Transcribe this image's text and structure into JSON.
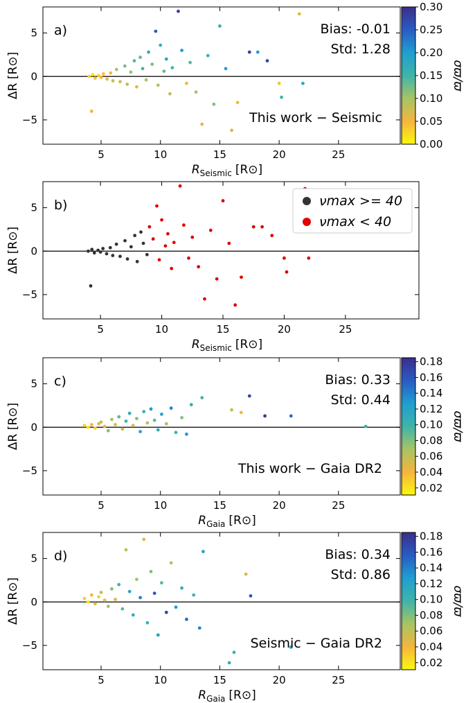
{
  "chart_data": [
    {
      "type": "scatter",
      "panel_label": "a)",
      "annotations": [
        "Bias: -0.01",
        "Std: 1.28",
        "This work − Seismic"
      ],
      "xlabel": {
        "symbol": "R",
        "subscript": "Seismic",
        "unit": "[R⊙]"
      },
      "ylabel": "ΔR [R⊙]",
      "xlim": [
        0.1,
        30.2
      ],
      "ylim": [
        -7.8,
        8
      ],
      "xticks": [
        5,
        10,
        15,
        20,
        25
      ],
      "yticks": [
        {
          "value": -5,
          "label": "−5"
        },
        0,
        5
      ],
      "hline": 0,
      "colorbar": {
        "label": "σϖ/ϖ",
        "clim": [
          0,
          0.3
        ],
        "cticks": [
          {
            "value": 0,
            "label": "0.00"
          },
          0.05,
          {
            "value": 0.1,
            "label": "0.10"
          },
          0.15,
          {
            "value": 0.2,
            "label": "0.20"
          },
          0.25,
          {
            "value": 0.3,
            "label": "0.30"
          }
        ]
      },
      "colormap": [
        "#fcf80e",
        "#f5b53e",
        "#a7c464",
        "#3fb4a9",
        "#1f9fd0",
        "#2a5bc4",
        "#3b2e88"
      ],
      "series": [
        {
          "x": [
            4.0,
            4.2,
            4.3,
            4.5,
            4.8,
            5.0,
            5.2,
            5.5,
            5.8,
            6.0,
            6.3,
            6.6,
            7.0,
            7.2,
            7.5,
            7.8,
            8.0,
            8.3,
            8.5,
            8.8,
            9.0,
            9.3,
            9.6,
            9.8,
            10.0,
            10.3,
            10.5,
            10.8,
            11.0,
            11.5,
            11.8,
            12.2,
            12.5,
            13.0,
            13.5,
            14.0,
            14.5,
            15.0,
            15.5,
            16.0,
            16.5,
            17.5,
            18.2,
            19.0,
            20.0,
            20.2,
            21.7,
            22.0
          ],
          "y": [
            0.0,
            -4.0,
            0.2,
            -0.2,
            0.1,
            -0.1,
            0.3,
            -0.3,
            0.4,
            -0.5,
            0.8,
            -0.6,
            1.2,
            -0.9,
            0.5,
            1.8,
            -1.2,
            2.2,
            0.9,
            -0.4,
            2.8,
            1.4,
            5.2,
            -1.0,
            3.6,
            0.6,
            2.0,
            -2.0,
            1.0,
            7.5,
            3.0,
            -0.8,
            1.6,
            -1.8,
            -5.5,
            2.4,
            -3.2,
            5.8,
            0.9,
            -6.2,
            -3.0,
            2.8,
            2.8,
            1.8,
            -0.8,
            -2.4,
            7.2,
            -0.8
          ],
          "c": [
            0.03,
            0.05,
            0.02,
            0.04,
            0.03,
            0.05,
            0.04,
            0.06,
            0.05,
            0.08,
            0.1,
            0.07,
            0.12,
            0.09,
            0.11,
            0.14,
            0.06,
            0.13,
            0.15,
            0.1,
            0.17,
            0.12,
            0.25,
            0.09,
            0.16,
            0.13,
            0.18,
            0.08,
            0.15,
            0.28,
            0.2,
            0.05,
            0.14,
            0.1,
            0.06,
            0.16,
            0.12,
            0.16,
            0.2,
            0.07,
            0.05,
            0.28,
            0.2,
            0.27,
            0.04,
            0.15,
            0.06,
            0.18
          ]
        }
      ]
    },
    {
      "type": "scatter",
      "panel_label": "b)",
      "xlabel": {
        "symbol": "R",
        "subscript": "Seismic",
        "unit": "[R⊙]"
      },
      "ylabel": "ΔR [R⊙]",
      "xlim": [
        0.3,
        31
      ],
      "ylim": [
        -7.8,
        8
      ],
      "xticks": [
        5,
        10,
        15,
        20,
        25
      ],
      "yticks": [
        {
          "value": -5,
          "label": "−5"
        },
        0,
        5
      ],
      "hline": 0,
      "legend": "upper right",
      "series": [
        {
          "name": "νmax >= 40",
          "color": "#333333",
          "x": [
            4.0,
            4.2,
            4.3,
            4.5,
            4.8,
            5.0,
            5.2,
            5.5,
            5.8,
            6.0,
            6.3,
            6.6,
            7.0,
            7.2,
            7.5,
            7.8,
            8.0,
            8.3,
            8.5,
            8.8
          ],
          "y": [
            0.0,
            -4.0,
            0.2,
            -0.2,
            0.1,
            -0.1,
            0.3,
            -0.3,
            0.4,
            -0.5,
            0.8,
            -0.6,
            1.2,
            -0.9,
            0.5,
            1.8,
            -1.2,
            2.2,
            0.9,
            -0.4
          ]
        },
        {
          "name": "νmax < 40",
          "color": "#e00000",
          "x": [
            9.0,
            9.3,
            9.6,
            9.8,
            10.0,
            10.3,
            10.5,
            10.8,
            11.0,
            11.5,
            11.8,
            12.2,
            12.5,
            13.0,
            13.5,
            14.0,
            14.5,
            15.0,
            15.5,
            16.0,
            16.5,
            17.5,
            18.2,
            19.0,
            20.0,
            20.2,
            21.7,
            22.0
          ],
          "y": [
            2.8,
            1.4,
            5.2,
            -1.0,
            3.6,
            0.6,
            2.0,
            -2.0,
            1.0,
            7.5,
            3.0,
            -0.8,
            1.6,
            -1.8,
            -5.5,
            2.4,
            -3.2,
            5.8,
            0.9,
            -6.2,
            -3.0,
            2.8,
            2.8,
            1.8,
            -0.8,
            -2.4,
            7.2,
            -0.8
          ]
        }
      ]
    },
    {
      "type": "scatter",
      "panel_label": "c)",
      "annotations": [
        "Bias: 0.33",
        "Std: 0.44",
        "This work − Gaia DR2"
      ],
      "xlabel": {
        "symbol": "R",
        "subscript": "Gaia",
        "unit": "[R⊙]"
      },
      "ylabel": "ΔR [R⊙]",
      "xlim": [
        0.1,
        30.2
      ],
      "ylim": [
        -7.8,
        8
      ],
      "xticks": [
        5,
        10,
        15,
        20,
        25
      ],
      "yticks": [
        {
          "value": -5,
          "label": "−5"
        },
        0,
        5
      ],
      "hline": 0,
      "colorbar": {
        "label": "σϖ/ϖ",
        "clim": [
          0.011,
          0.185
        ],
        "cticks": [
          0.02,
          0.04,
          0.06,
          0.08,
          {
            "value": 0.1,
            "label": "0.10"
          },
          0.12,
          0.14,
          0.16,
          0.18
        ]
      },
      "colormap": [
        "#fcf80e",
        "#f5b53e",
        "#a7c464",
        "#3fb4a9",
        "#1f9fd0",
        "#2a5bc4",
        "#3b2e88"
      ],
      "series": [
        {
          "x": [
            3.6,
            3.9,
            4.2,
            4.5,
            4.8,
            5.0,
            5.3,
            5.6,
            5.9,
            6.2,
            6.5,
            6.8,
            7.1,
            7.4,
            7.7,
            8.0,
            8.3,
            8.6,
            8.9,
            9.2,
            9.5,
            9.8,
            10.1,
            10.5,
            10.9,
            11.3,
            11.8,
            12.2,
            12.6,
            13.5,
            16.0,
            16.8,
            17.5,
            18.8,
            21.0,
            27.3
          ],
          "y": [
            0.2,
            0.0,
            0.3,
            -0.1,
            0.4,
            0.6,
            0.1,
            -0.4,
            0.9,
            0.3,
            1.2,
            -0.2,
            0.7,
            1.6,
            0.2,
            1.0,
            -0.5,
            1.8,
            0.5,
            2.1,
            0.8,
            -0.3,
            1.5,
            0.4,
            2.2,
            -0.6,
            1.1,
            -0.8,
            2.6,
            3.4,
            2.0,
            1.7,
            3.6,
            1.3,
            1.3,
            0.1
          ],
          "c": [
            0.03,
            0.02,
            0.04,
            0.03,
            0.05,
            0.06,
            0.04,
            0.08,
            0.07,
            0.05,
            0.09,
            0.06,
            0.1,
            0.11,
            0.05,
            0.08,
            0.12,
            0.1,
            0.06,
            0.13,
            0.09,
            0.11,
            0.12,
            0.07,
            0.14,
            0.1,
            0.08,
            0.13,
            0.11,
            0.1,
            0.06,
            0.04,
            0.17,
            0.18,
            0.15,
            0.1
          ]
        }
      ]
    },
    {
      "type": "scatter",
      "panel_label": "d)",
      "annotations": [
        "Bias: 0.34",
        "Std: 0.86",
        "Seismic − Gaia DR2"
      ],
      "xlabel": {
        "symbol": "R",
        "subscript": "Gaia",
        "unit": "[R⊙]"
      },
      "ylabel": "ΔR [R⊙]",
      "xlim": [
        0.1,
        30.2
      ],
      "ylim": [
        -7.8,
        8
      ],
      "xticks": [
        5,
        10,
        15,
        20,
        25
      ],
      "yticks": [
        {
          "value": -5,
          "label": "−5"
        },
        0,
        5
      ],
      "hline": 0,
      "colorbar": {
        "label": "σϖ/ϖ",
        "clim": [
          0.011,
          0.185
        ],
        "cticks": [
          0.02,
          0.04,
          0.06,
          0.08,
          {
            "value": 0.1,
            "label": "0.10"
          },
          0.12,
          0.14,
          0.16,
          0.18
        ]
      },
      "colormap": [
        "#fcf80e",
        "#f5b53e",
        "#a7c464",
        "#3fb4a9",
        "#1f9fd0",
        "#2a5bc4",
        "#3b2e88"
      ],
      "series": [
        {
          "x": [
            3.6,
            3.9,
            4.2,
            4.5,
            4.8,
            5.0,
            5.3,
            5.6,
            5.9,
            6.2,
            6.5,
            6.8,
            7.1,
            7.4,
            7.7,
            8.0,
            8.3,
            8.6,
            8.9,
            9.2,
            9.5,
            9.8,
            10.1,
            10.5,
            10.9,
            11.3,
            11.8,
            12.2,
            12.8,
            13.3,
            13.6,
            15.8,
            16.2,
            17.2,
            17.6,
            21.0
          ],
          "y": [
            0.4,
            0.0,
            0.8,
            -0.2,
            0.6,
            1.1,
            0.2,
            -0.5,
            1.5,
            0.3,
            2.0,
            -0.8,
            6.0,
            1.2,
            -1.5,
            2.6,
            0.5,
            7.2,
            -2.4,
            3.5,
            1.0,
            -3.8,
            2.2,
            -1.2,
            4.5,
            -0.6,
            1.6,
            -2.0,
            0.8,
            -3.0,
            5.8,
            -7.0,
            -5.8,
            3.2,
            0.7,
            -5.2
          ],
          "c": [
            0.03,
            0.02,
            0.04,
            0.05,
            0.03,
            0.06,
            0.04,
            0.07,
            0.08,
            0.05,
            0.1,
            0.09,
            0.06,
            0.12,
            0.11,
            0.07,
            0.14,
            0.05,
            0.1,
            0.08,
            0.16,
            0.12,
            0.09,
            0.17,
            0.06,
            0.13,
            0.11,
            0.15,
            0.1,
            0.14,
            0.12,
            0.11,
            0.1,
            0.05,
            0.16,
            0.12
          ]
        }
      ]
    }
  ]
}
